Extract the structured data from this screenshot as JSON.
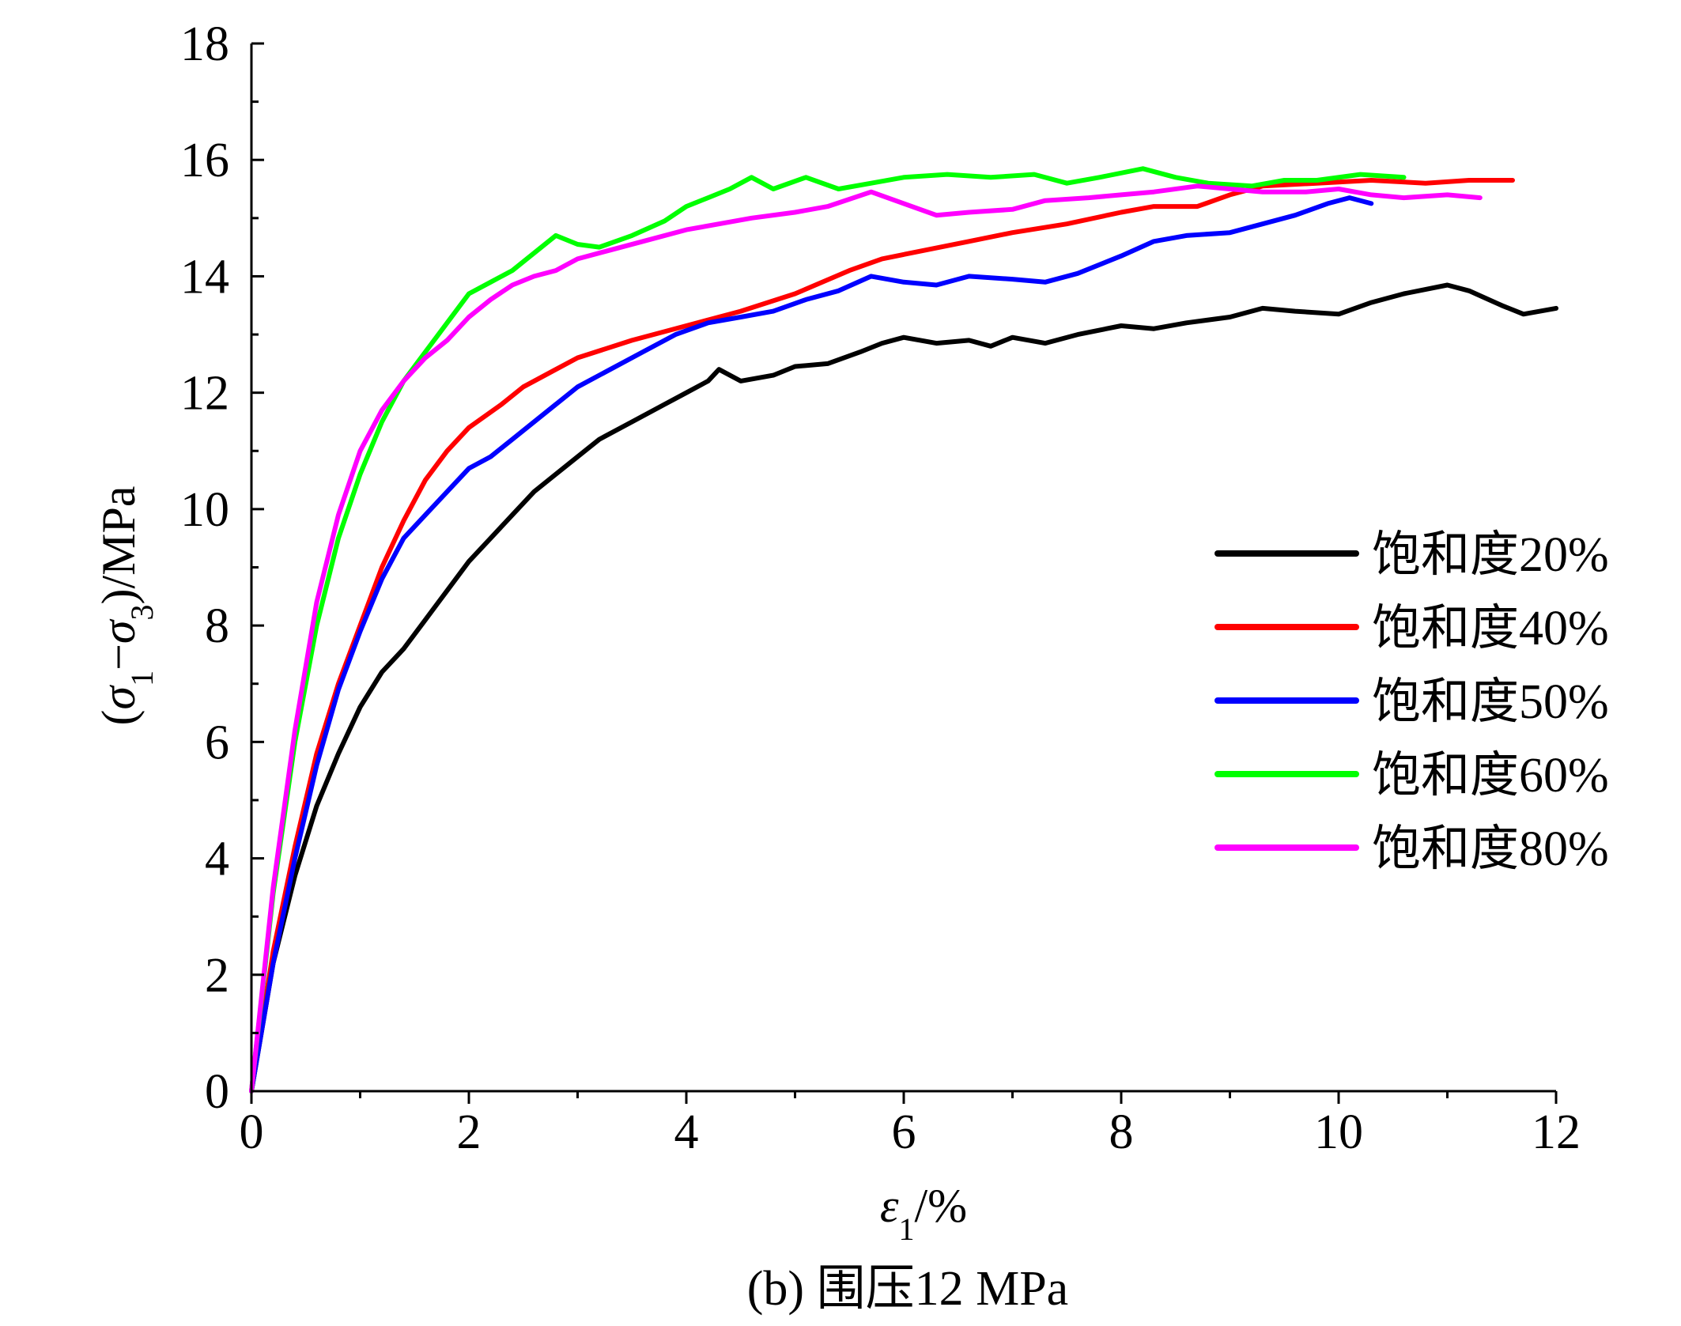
{
  "caption": "(b) 围压12 MPa",
  "chart_data": {
    "type": "line",
    "title": "",
    "xlabel": "ε1/%",
    "ylabel": "(σ1−σ3)/MPa",
    "xlim": [
      0,
      12
    ],
    "ylim": [
      0,
      18
    ],
    "x_ticks": [
      0,
      2,
      4,
      6,
      8,
      10,
      12
    ],
    "y_ticks": [
      0,
      2,
      4,
      6,
      8,
      10,
      12,
      14,
      16,
      18
    ],
    "grid": false,
    "legend_position": "right-middle",
    "series": [
      {
        "name": "饱和度20%",
        "color": "#000000",
        "points": [
          [
            0,
            0
          ],
          [
            0.2,
            2.2
          ],
          [
            0.4,
            3.7
          ],
          [
            0.6,
            4.9
          ],
          [
            0.8,
            5.8
          ],
          [
            1.0,
            6.6
          ],
          [
            1.2,
            7.2
          ],
          [
            1.4,
            7.6
          ],
          [
            1.6,
            8.1
          ],
          [
            1.8,
            8.6
          ],
          [
            2.0,
            9.1
          ],
          [
            2.2,
            9.5
          ],
          [
            2.4,
            9.9
          ],
          [
            2.6,
            10.3
          ],
          [
            2.8,
            10.6
          ],
          [
            3.0,
            10.9
          ],
          [
            3.2,
            11.2
          ],
          [
            3.5,
            11.5
          ],
          [
            3.8,
            11.8
          ],
          [
            4.0,
            12.0
          ],
          [
            4.2,
            12.2
          ],
          [
            4.3,
            12.4
          ],
          [
            4.5,
            12.2
          ],
          [
            4.8,
            12.3
          ],
          [
            5.0,
            12.45
          ],
          [
            5.3,
            12.5
          ],
          [
            5.6,
            12.7
          ],
          [
            5.8,
            12.85
          ],
          [
            6.0,
            12.95
          ],
          [
            6.3,
            12.85
          ],
          [
            6.6,
            12.9
          ],
          [
            6.8,
            12.8
          ],
          [
            7.0,
            12.95
          ],
          [
            7.3,
            12.85
          ],
          [
            7.6,
            13.0
          ],
          [
            8.0,
            13.15
          ],
          [
            8.3,
            13.1
          ],
          [
            8.6,
            13.2
          ],
          [
            9.0,
            13.3
          ],
          [
            9.3,
            13.45
          ],
          [
            9.6,
            13.4
          ],
          [
            10.0,
            13.35
          ],
          [
            10.3,
            13.55
          ],
          [
            10.6,
            13.7
          ],
          [
            11.0,
            13.85
          ],
          [
            11.2,
            13.75
          ],
          [
            11.5,
            13.5
          ],
          [
            11.7,
            13.35
          ],
          [
            12.0,
            13.45
          ]
        ]
      },
      {
        "name": "饱和度40%",
        "color": "#ff0000",
        "points": [
          [
            0,
            0
          ],
          [
            0.2,
            2.4
          ],
          [
            0.4,
            4.2
          ],
          [
            0.6,
            5.8
          ],
          [
            0.8,
            7.0
          ],
          [
            1.0,
            8.0
          ],
          [
            1.2,
            9.0
          ],
          [
            1.4,
            9.8
          ],
          [
            1.6,
            10.5
          ],
          [
            1.8,
            11.0
          ],
          [
            2.0,
            11.4
          ],
          [
            2.3,
            11.8
          ],
          [
            2.5,
            12.1
          ],
          [
            2.8,
            12.4
          ],
          [
            3.0,
            12.6
          ],
          [
            3.5,
            12.9
          ],
          [
            4.0,
            13.15
          ],
          [
            4.5,
            13.4
          ],
          [
            5.0,
            13.7
          ],
          [
            5.5,
            14.1
          ],
          [
            5.8,
            14.3
          ],
          [
            6.2,
            14.45
          ],
          [
            6.6,
            14.6
          ],
          [
            7.0,
            14.75
          ],
          [
            7.5,
            14.9
          ],
          [
            8.0,
            15.1
          ],
          [
            8.3,
            15.2
          ],
          [
            8.7,
            15.2
          ],
          [
            9.0,
            15.4
          ],
          [
            9.3,
            15.55
          ],
          [
            9.8,
            15.6
          ],
          [
            10.3,
            15.65
          ],
          [
            10.8,
            15.6
          ],
          [
            11.2,
            15.65
          ],
          [
            11.6,
            15.65
          ]
        ]
      },
      {
        "name": "饱和度50%",
        "color": "#0000ff",
        "points": [
          [
            0,
            0
          ],
          [
            0.2,
            2.2
          ],
          [
            0.4,
            4.0
          ],
          [
            0.6,
            5.6
          ],
          [
            0.8,
            6.9
          ],
          [
            1.0,
            7.9
          ],
          [
            1.2,
            8.8
          ],
          [
            1.4,
            9.5
          ],
          [
            1.6,
            9.9
          ],
          [
            1.8,
            10.3
          ],
          [
            2.0,
            10.7
          ],
          [
            2.2,
            10.9
          ],
          [
            2.4,
            11.2
          ],
          [
            2.6,
            11.5
          ],
          [
            2.8,
            11.8
          ],
          [
            3.0,
            12.1
          ],
          [
            3.3,
            12.4
          ],
          [
            3.6,
            12.7
          ],
          [
            3.9,
            13.0
          ],
          [
            4.2,
            13.2
          ],
          [
            4.5,
            13.3
          ],
          [
            4.8,
            13.4
          ],
          [
            5.1,
            13.6
          ],
          [
            5.4,
            13.75
          ],
          [
            5.7,
            14.0
          ],
          [
            6.0,
            13.9
          ],
          [
            6.3,
            13.85
          ],
          [
            6.6,
            14.0
          ],
          [
            7.0,
            13.95
          ],
          [
            7.3,
            13.9
          ],
          [
            7.6,
            14.05
          ],
          [
            8.0,
            14.35
          ],
          [
            8.3,
            14.6
          ],
          [
            8.6,
            14.7
          ],
          [
            9.0,
            14.75
          ],
          [
            9.3,
            14.9
          ],
          [
            9.6,
            15.05
          ],
          [
            9.9,
            15.25
          ],
          [
            10.1,
            15.35
          ],
          [
            10.3,
            15.25
          ]
        ]
      },
      {
        "name": "饱和度60%",
        "color": "#00ff00",
        "points": [
          [
            0,
            0
          ],
          [
            0.2,
            3.4
          ],
          [
            0.4,
            6.0
          ],
          [
            0.6,
            8.0
          ],
          [
            0.8,
            9.5
          ],
          [
            1.0,
            10.6
          ],
          [
            1.2,
            11.5
          ],
          [
            1.4,
            12.2
          ],
          [
            1.6,
            12.7
          ],
          [
            1.8,
            13.2
          ],
          [
            2.0,
            13.7
          ],
          [
            2.2,
            13.9
          ],
          [
            2.4,
            14.1
          ],
          [
            2.6,
            14.4
          ],
          [
            2.8,
            14.7
          ],
          [
            3.0,
            14.55
          ],
          [
            3.2,
            14.5
          ],
          [
            3.5,
            14.7
          ],
          [
            3.8,
            14.95
          ],
          [
            4.0,
            15.2
          ],
          [
            4.2,
            15.35
          ],
          [
            4.4,
            15.5
          ],
          [
            4.6,
            15.7
          ],
          [
            4.8,
            15.5
          ],
          [
            5.1,
            15.7
          ],
          [
            5.4,
            15.5
          ],
          [
            5.7,
            15.6
          ],
          [
            6.0,
            15.7
          ],
          [
            6.4,
            15.75
          ],
          [
            6.8,
            15.7
          ],
          [
            7.2,
            15.75
          ],
          [
            7.5,
            15.6
          ],
          [
            7.8,
            15.7
          ],
          [
            8.2,
            15.85
          ],
          [
            8.5,
            15.7
          ],
          [
            8.8,
            15.6
          ],
          [
            9.2,
            15.55
          ],
          [
            9.5,
            15.65
          ],
          [
            9.8,
            15.65
          ],
          [
            10.2,
            15.75
          ],
          [
            10.6,
            15.7
          ]
        ]
      },
      {
        "name": "饱和度80%",
        "color": "#ff00ff",
        "points": [
          [
            0,
            0
          ],
          [
            0.2,
            3.5
          ],
          [
            0.4,
            6.2
          ],
          [
            0.6,
            8.4
          ],
          [
            0.8,
            9.9
          ],
          [
            1.0,
            11.0
          ],
          [
            1.2,
            11.7
          ],
          [
            1.4,
            12.2
          ],
          [
            1.6,
            12.6
          ],
          [
            1.8,
            12.9
          ],
          [
            2.0,
            13.3
          ],
          [
            2.2,
            13.6
          ],
          [
            2.4,
            13.85
          ],
          [
            2.6,
            14.0
          ],
          [
            2.8,
            14.1
          ],
          [
            3.0,
            14.3
          ],
          [
            3.3,
            14.45
          ],
          [
            3.6,
            14.6
          ],
          [
            4.0,
            14.8
          ],
          [
            4.3,
            14.9
          ],
          [
            4.6,
            15.0
          ],
          [
            5.0,
            15.1
          ],
          [
            5.3,
            15.2
          ],
          [
            5.7,
            15.45
          ],
          [
            6.0,
            15.25
          ],
          [
            6.3,
            15.05
          ],
          [
            6.6,
            15.1
          ],
          [
            7.0,
            15.15
          ],
          [
            7.3,
            15.3
          ],
          [
            7.7,
            15.35
          ],
          [
            8.0,
            15.4
          ],
          [
            8.3,
            15.45
          ],
          [
            8.7,
            15.55
          ],
          [
            9.0,
            15.5
          ],
          [
            9.3,
            15.45
          ],
          [
            9.7,
            15.45
          ],
          [
            10.0,
            15.5
          ],
          [
            10.3,
            15.4
          ],
          [
            10.6,
            15.35
          ],
          [
            11.0,
            15.4
          ],
          [
            11.3,
            15.35
          ]
        ]
      }
    ]
  }
}
